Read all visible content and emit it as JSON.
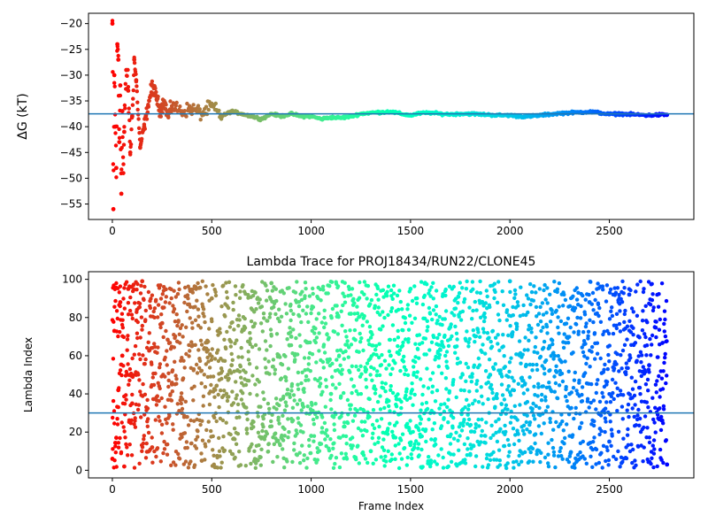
{
  "chart_data": [
    {
      "type": "scatter",
      "title": "",
      "xlabel": "",
      "ylabel": "ΔG (kT)",
      "xlim": [
        -120,
        2925
      ],
      "ylim": [
        -58,
        -18
      ],
      "xticks": [
        0,
        500,
        1000,
        1500,
        2000,
        2500
      ],
      "yticks": [
        -55,
        -50,
        -45,
        -40,
        -35,
        -30,
        -25,
        -20
      ],
      "hline": -37.5,
      "hline_color": "#1f77b4",
      "colormap": "rainbow (reversed)",
      "marker_size": 2,
      "series": [
        {
          "x": [
            0,
            5,
            10,
            15,
            20,
            25,
            30,
            35,
            40,
            45,
            50,
            55,
            60,
            70,
            80,
            90,
            100,
            110,
            120,
            140,
            160,
            180,
            200,
            220,
            240,
            260,
            280,
            300,
            350,
            400,
            450,
            500,
            550,
            600,
            650,
            700,
            750,
            800,
            850,
            900,
            950,
            1000,
            1050,
            1100,
            1150,
            1200,
            1250,
            1300,
            1350,
            1400,
            1450,
            1500,
            1550,
            1600,
            1650,
            1700,
            1750,
            1800,
            1850,
            1900,
            1950,
            2000,
            2050,
            2100,
            2150,
            2200,
            2250,
            2300,
            2350,
            2400,
            2450,
            2500,
            2550,
            2600,
            2650,
            2700,
            2750,
            2790
          ],
          "y": [
            -20,
            -56,
            -30,
            -40,
            -48,
            -24,
            -27,
            -43,
            -32,
            -53,
            -37,
            -49,
            -41,
            -29,
            -33,
            -45,
            -38,
            -27,
            -31,
            -44,
            -40,
            -36,
            -32,
            -34,
            -37,
            -35,
            -38,
            -36,
            -37,
            -36.5,
            -37.5,
            -36,
            -38,
            -37,
            -37.5,
            -38,
            -38.5,
            -37.5,
            -38,
            -37.5,
            -38,
            -38,
            -38.5,
            -38.2,
            -38.3,
            -38,
            -37.5,
            -37.3,
            -37.2,
            -37.1,
            -37.5,
            -37.8,
            -37.4,
            -37.3,
            -37.5,
            -37.6,
            -37.5,
            -37.5,
            -37.6,
            -37.7,
            -37.8,
            -37.8,
            -38,
            -38,
            -37.8,
            -37.6,
            -37.4,
            -37.3,
            -37.2,
            -37.1,
            -37.3,
            -37.6,
            -37.5,
            -37.6,
            -37.7,
            -37.8,
            -37.7,
            -37.7
          ]
        }
      ]
    },
    {
      "type": "scatter",
      "title": "Lambda Trace for PROJ18434/RUN22/CLONE45",
      "xlabel": "Frame Index",
      "ylabel": "Lambda Index",
      "xlim": [
        -120,
        2925
      ],
      "ylim": [
        -4,
        104
      ],
      "xticks": [
        0,
        500,
        1000,
        1500,
        2000,
        2500
      ],
      "yticks": [
        0,
        20,
        40,
        60,
        80,
        100
      ],
      "hline": 30,
      "hline_color": "#1f77b4",
      "colormap": "rainbow (reversed)",
      "marker_size": 2,
      "point_count_estimate": 2800,
      "distribution": "lambda index spread roughly uniformly over 1–99 across all frames 0–2800",
      "series": [
        {
          "x": [
            0,
            10,
            20,
            30,
            40,
            50,
            60,
            80,
            100,
            120,
            150,
            200,
            250,
            300,
            350,
            400,
            450,
            500,
            600,
            700,
            800,
            900,
            1000,
            1100,
            1200,
            1300,
            1400,
            1500,
            1600,
            1700,
            1800,
            1900,
            2000,
            2100,
            2200,
            2300,
            2400,
            2500,
            2600,
            2700,
            2790
          ],
          "y": [
            6,
            73,
            17,
            42,
            88,
            60,
            2,
            95,
            35,
            50,
            99,
            12,
            77,
            45,
            30,
            65,
            5,
            90,
            55,
            22,
            98,
            70,
            18,
            40,
            82,
            10,
            60,
            95,
            30,
            75,
            8,
            50,
            99,
            20,
            65,
            40,
            88,
            15,
            92,
            55,
            3
          ]
        }
      ]
    }
  ]
}
